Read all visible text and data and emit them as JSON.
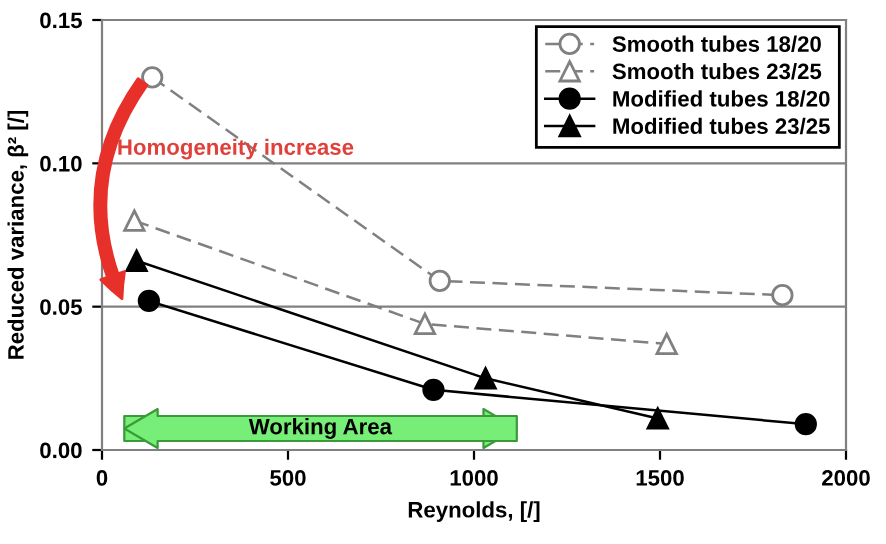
{
  "chart_data": {
    "type": "line",
    "xlabel": "Reynolds, [/]",
    "ylabel": "Reduced variance, β² [/]",
    "xlim": [
      0,
      2000
    ],
    "xticks": [
      0,
      500,
      1000,
      1500,
      2000
    ],
    "ylim": [
      0,
      0.15
    ],
    "yticks": [
      {
        "value": 0,
        "label": "0.00"
      },
      {
        "value": 0.05,
        "label": "0.05"
      },
      {
        "value": 0.1,
        "label": "0.10"
      },
      {
        "value": 0.15,
        "label": "0.15"
      }
    ],
    "grid": "y",
    "legend": "top right",
    "annotations": [
      "Homogeneity increase",
      "Working Area"
    ],
    "series": [
      {
        "name": "Smooth tubes 18/20",
        "color": "#808080",
        "marker": "circle",
        "line_style": "dashed",
        "x": [
          135,
          908,
          1829
        ],
        "values": [
          0.13,
          0.059,
          0.054
        ]
      },
      {
        "name": "Smooth tubes 23/25",
        "color": "#808080",
        "marker": "triangle",
        "line_style": "dashed",
        "x": [
          87,
          868,
          1518
        ],
        "values": [
          0.08,
          0.044,
          0.037
        ]
      },
      {
        "name": "Modified tubes 18/20",
        "color": "#000000",
        "marker": "circle",
        "line_style": "solid",
        "x": [
          126,
          891,
          1892
        ],
        "values": [
          0.052,
          0.021,
          0.009
        ]
      },
      {
        "name": "Modified tubes 23/25",
        "color": "#000000",
        "marker": "triangle",
        "line_style": "solid",
        "x": [
          93,
          1031,
          1494
        ],
        "values": [
          0.066,
          0.025,
          0.011
        ]
      }
    ]
  }
}
